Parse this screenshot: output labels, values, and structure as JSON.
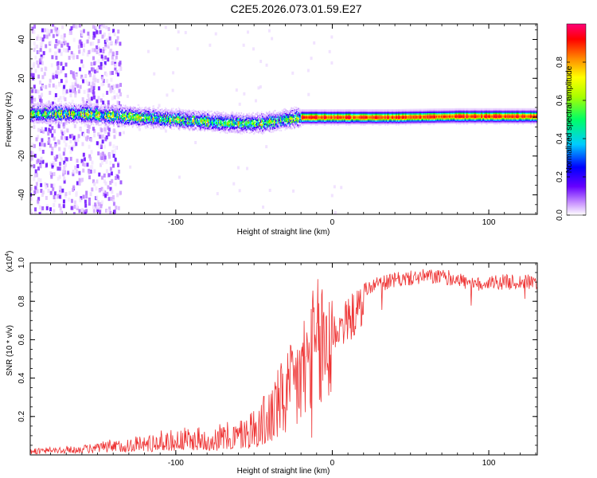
{
  "title": "C2E5.2026.073.01.59.E27",
  "chart_data": [
    {
      "type": "heatmap",
      "xlabel": "Height of straight line (km)",
      "ylabel": "Frequency (Hz)",
      "xlim": [
        -193,
        131
      ],
      "ylim": [
        -50,
        48
      ],
      "x_ticks": [
        -100,
        0,
        100
      ],
      "y_ticks": [
        -40,
        -20,
        0,
        20,
        40
      ],
      "colorbar": {
        "label": "Normalized spectral amplitude",
        "range": [
          0,
          1
        ],
        "ticks": [
          0.0,
          0.2,
          0.4,
          0.6,
          0.8
        ],
        "colormap": [
          "#ffffff",
          "#cc99ff",
          "#6600ff",
          "#0000ff",
          "#00ffff",
          "#00ff00",
          "#ffff00",
          "#ff8800",
          "#ff0000",
          "#ff0066"
        ]
      },
      "ridge": [
        {
          "x": -190,
          "y": 2
        },
        {
          "x": -160,
          "y": 2
        },
        {
          "x": -140,
          "y": 1
        },
        {
          "x": -120,
          "y": 0
        },
        {
          "x": -100,
          "y": -1
        },
        {
          "x": -80,
          "y": -2
        },
        {
          "x": -60,
          "y": -3
        },
        {
          "x": -45,
          "y": -3
        },
        {
          "x": -30,
          "y": -1
        },
        {
          "x": -20,
          "y": 0
        },
        {
          "x": 0,
          "y": 0
        },
        {
          "x": 40,
          "y": 0
        },
        {
          "x": 80,
          "y": 0.5
        },
        {
          "x": 100,
          "y": 0.5
        },
        {
          "x": 131,
          "y": 0.5
        }
      ],
      "noise_region_x": [
        -193,
        -135
      ]
    },
    {
      "type": "line",
      "xlabel": "Height of straight line (km)",
      "ylabel": "SNR (10 * v/v)",
      "y_scale_label": "(x10",
      "y_scale_exp": "4",
      "y_scale_close": ")",
      "xlim": [
        -193,
        131
      ],
      "ylim": [
        0,
        1.0
      ],
      "x_ticks": [
        -100,
        0,
        100
      ],
      "y_ticks": [
        0.2,
        0.4,
        0.6,
        0.8,
        1.0
      ],
      "color": "#ee3333",
      "series_envelope": [
        {
          "x": -193,
          "y": 0.02
        },
        {
          "x": -160,
          "y": 0.03
        },
        {
          "x": -140,
          "y": 0.05
        },
        {
          "x": -120,
          "y": 0.07
        },
        {
          "x": -100,
          "y": 0.09
        },
        {
          "x": -80,
          "y": 0.1
        },
        {
          "x": -60,
          "y": 0.12
        },
        {
          "x": -45,
          "y": 0.2
        },
        {
          "x": -35,
          "y": 0.3
        },
        {
          "x": -25,
          "y": 0.4
        },
        {
          "x": -15,
          "y": 0.55
        },
        {
          "x": -8,
          "y": 0.63
        },
        {
          "x": 0,
          "y": 0.7
        },
        {
          "x": 10,
          "y": 0.78
        },
        {
          "x": 20,
          "y": 0.86
        },
        {
          "x": 30,
          "y": 0.89
        },
        {
          "x": 40,
          "y": 0.91
        },
        {
          "x": 60,
          "y": 0.93
        },
        {
          "x": 80,
          "y": 0.92
        },
        {
          "x": 90,
          "y": 0.88
        },
        {
          "x": 100,
          "y": 0.9
        },
        {
          "x": 131,
          "y": 0.9
        }
      ]
    }
  ]
}
